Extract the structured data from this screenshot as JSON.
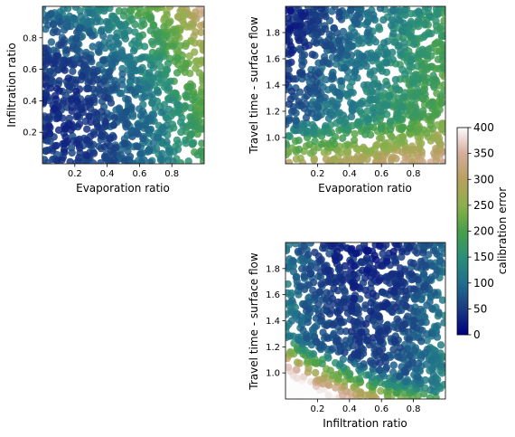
{
  "figure": {
    "colormap_name": "gist_earth",
    "background": "#ffffff"
  },
  "chart_data": [
    {
      "type": "scatter",
      "panel": "top-left",
      "xlabel": "Evaporation ratio",
      "ylabel": "Infiltration ratio",
      "xlim": [
        0.0,
        1.0
      ],
      "ylim": [
        0.0,
        1.0
      ],
      "xticks": [
        0.2,
        0.4,
        0.6,
        0.8
      ],
      "yticks": [
        0.2,
        0.4,
        0.6,
        0.8
      ],
      "xtick_labels": [
        "0.2",
        "0.4",
        "0.6",
        "0.8"
      ],
      "ytick_labels": [
        "0.2",
        "0.4",
        "0.6",
        "0.8"
      ],
      "color_variable": "calibration error",
      "error_field": {
        "description_points": [
          {
            "x": 0.15,
            "y": 0.35,
            "error": 40
          },
          {
            "x": 0.3,
            "y": 0.6,
            "error": 90
          },
          {
            "x": 0.5,
            "y": 0.5,
            "error": 110
          },
          {
            "x": 0.9,
            "y": 0.9,
            "error": 210
          },
          {
            "x": 0.9,
            "y": 0.2,
            "error": 200
          }
        ]
      }
    },
    {
      "type": "scatter",
      "panel": "top-right",
      "xlabel": "Evaporation ratio",
      "ylabel": "Travel time - surface flow",
      "xlim": [
        0.0,
        1.0
      ],
      "ylim": [
        0.8,
        2.0
      ],
      "xticks": [
        0.2,
        0.4,
        0.6,
        0.8
      ],
      "yticks": [
        1.0,
        1.2,
        1.4,
        1.6,
        1.8
      ],
      "xtick_labels": [
        "0.2",
        "0.4",
        "0.6",
        "0.8"
      ],
      "ytick_labels": [
        "1.0",
        "1.2",
        "1.4",
        "1.6",
        "1.8"
      ],
      "color_variable": "calibration error",
      "error_field": {
        "description_points": [
          {
            "x": 0.15,
            "y": 1.9,
            "error": 20
          },
          {
            "x": 0.5,
            "y": 1.5,
            "error": 110
          },
          {
            "x": 0.9,
            "y": 1.8,
            "error": 210
          },
          {
            "x": 0.3,
            "y": 0.9,
            "error": 300
          }
        ]
      }
    },
    {
      "type": "scatter",
      "panel": "bottom-right",
      "xlabel": "Infiltration ratio",
      "ylabel": "Travel time - surface flow",
      "xlim": [
        0.0,
        1.0
      ],
      "ylim": [
        0.8,
        2.0
      ],
      "xticks": [
        0.2,
        0.4,
        0.6,
        0.8
      ],
      "yticks": [
        1.0,
        1.2,
        1.4,
        1.6,
        1.8
      ],
      "xtick_labels": [
        "0.2",
        "0.4",
        "0.6",
        "0.8"
      ],
      "ytick_labels": [
        "1.0",
        "1.2",
        "1.4",
        "1.6",
        "1.8"
      ],
      "color_variable": "calibration error",
      "error_field": {
        "description_points": [
          {
            "x": 0.5,
            "y": 1.8,
            "error": 30
          },
          {
            "x": 0.3,
            "y": 1.5,
            "error": 100
          },
          {
            "x": 0.1,
            "y": 1.2,
            "error": 220
          },
          {
            "x": 0.1,
            "y": 0.9,
            "error": 400
          },
          {
            "x": 0.9,
            "y": 1.1,
            "error": 180
          }
        ]
      }
    },
    {
      "type": "colorbar",
      "label": "calibration error",
      "range": [
        0,
        400
      ],
      "ticks": [
        0,
        50,
        100,
        150,
        200,
        250,
        300,
        350,
        400
      ],
      "tick_labels": [
        "0",
        "50",
        "100",
        "150",
        "200",
        "250",
        "300",
        "350",
        "400"
      ]
    }
  ]
}
